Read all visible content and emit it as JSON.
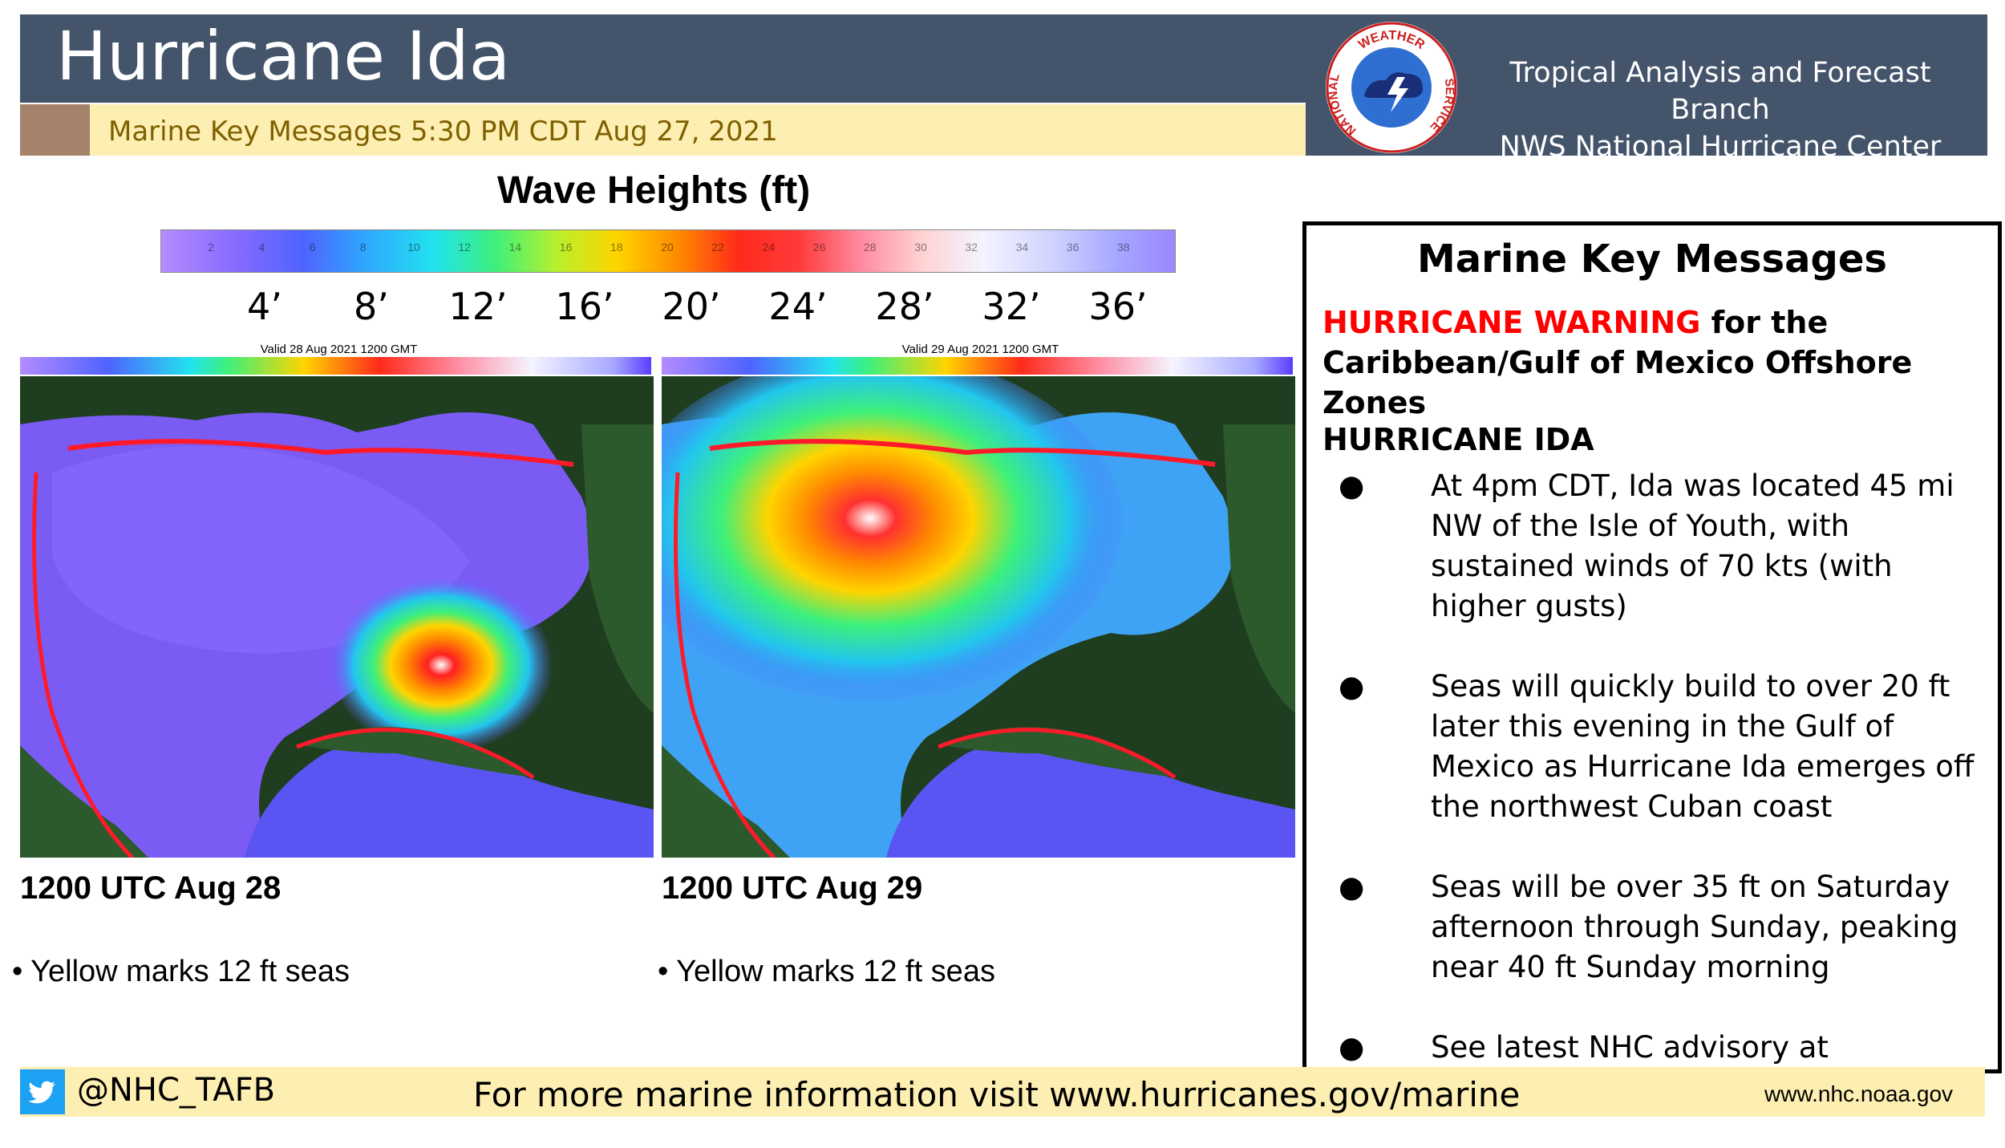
{
  "header": {
    "title": "Hurricane Ida",
    "subtitle": "Marine Key Messages 5:30 PM CDT Aug 27, 2021",
    "branch_line1": "Tropical Analysis and Forecast Branch",
    "branch_line2": "NWS National Hurricane Center",
    "logo_text_top": "WEATHER",
    "logo_text_left": "NATIONAL",
    "logo_text_right": "SERVICE"
  },
  "wave_scale": {
    "title": "Wave Heights (ft)",
    "labels": [
      "4’",
      "8’",
      "12’",
      "16’",
      "20’",
      "24’",
      "28’",
      "32’",
      "36’"
    ],
    "ticks": [
      "2",
      "4",
      "6",
      "8",
      "10",
      "12",
      "14",
      "16",
      "18",
      "20",
      "22",
      "24",
      "26",
      "28",
      "30",
      "32",
      "34",
      "36",
      "38"
    ]
  },
  "maps": [
    {
      "valid": "Valid 28 Aug 2021 1200 GMT",
      "caption": "1200 UTC Aug 28",
      "note": "• Yellow marks 12 ft seas",
      "storm_peak_ft": 24
    },
    {
      "valid": "Valid 29 Aug 2021 1200 GMT",
      "caption": "1200 UTC Aug 29",
      "note": "• Yellow marks 12 ft seas",
      "storm_peak_ft": 36
    }
  ],
  "panel": {
    "title": "Marine Key Messages",
    "warning_red": "HURRICANE WARNING",
    "warning_rest": " for the Caribbean/Gulf of Mexico Offshore Zones",
    "storm_name": "HURRICANE IDA",
    "bullets": [
      "At 4pm CDT, Ida was located 45 mi NW of the Isle of Youth, with sustained winds of 70 kts (with higher gusts)",
      "Seas will quickly build to over 20 ft later this evening in the Gulf of Mexico as Hurricane Ida emerges off the northwest Cuban coast",
      "Seas will be over 35 ft on Saturday afternoon through Sunday, peaking near 40 ft Sunday morning",
      "See latest NHC advisory at www.hurricanes.gov"
    ]
  },
  "footer": {
    "handle": "@NHC_TAFB",
    "info": "For more marine information visit www.hurricanes.gov/marine",
    "url": "www.nhc.noaa.gov"
  },
  "colors": {
    "header_bg": "#44546a",
    "subtitle_bg": "#fdefb2",
    "subtitle_text": "#7f6000",
    "warning_red": "#ff0000",
    "twitter_blue": "#1da1f2"
  }
}
